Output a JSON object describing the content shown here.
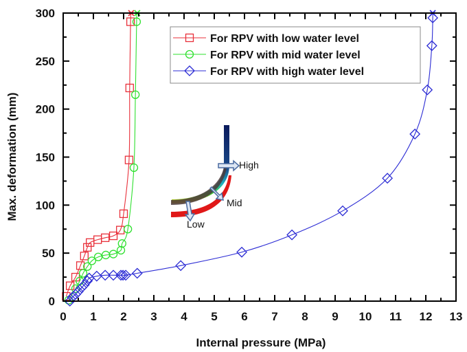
{
  "chart_data": {
    "type": "line",
    "title": "",
    "xlabel": "Internal pressure (MPa)",
    "ylabel": "Max. deformation (mm)",
    "xlim": [
      0,
      13
    ],
    "ylim": [
      0,
      300
    ],
    "x_ticks": [
      "0",
      "1",
      "2",
      "3",
      "4",
      "5",
      "6",
      "7",
      "8",
      "9",
      "10",
      "11",
      "12",
      "13"
    ],
    "y_ticks": [
      "0",
      "50",
      "100",
      "150",
      "200",
      "250",
      "300"
    ],
    "grid": false,
    "legend_position": "top-right",
    "series": [
      {
        "name": "For RPV with low water level",
        "color": "#e8303a",
        "marker": "square",
        "end_marker": "x",
        "x": [
          0.1,
          0.23,
          0.41,
          0.57,
          0.7,
          0.8,
          0.89,
          1.14,
          1.39,
          1.66,
          1.89,
          2.0,
          2.18,
          2.2,
          2.23,
          2.25
        ],
        "y": [
          5,
          16,
          25,
          37,
          47,
          56,
          61,
          64,
          66,
          68,
          74,
          91,
          147,
          222,
          291,
          300
        ]
      },
      {
        "name": "For RPV with mid water level",
        "color": "#2ee02e",
        "marker": "circle",
        "end_marker": "x",
        "x": [
          0.18,
          0.41,
          0.55,
          0.66,
          0.8,
          0.95,
          1.16,
          1.41,
          1.66,
          1.91,
          1.95,
          2.14,
          2.34,
          2.39,
          2.43,
          2.45
        ],
        "y": [
          1,
          13,
          21,
          29,
          36,
          42,
          46,
          48,
          49,
          53,
          60,
          75,
          139,
          215,
          291,
          300
        ]
      },
      {
        "name": "For RPV with high water level",
        "color": "#2b2bd4",
        "marker": "diamond",
        "end_marker": "x",
        "x": [
          0.22,
          0.3,
          0.41,
          0.5,
          0.61,
          0.7,
          0.8,
          0.86,
          1.11,
          1.39,
          1.66,
          1.91,
          1.98,
          2.07,
          2.45,
          3.89,
          5.91,
          7.57,
          9.25,
          10.73,
          11.64,
          12.05,
          12.2,
          12.23,
          12.23
        ],
        "y": [
          0,
          4,
          7,
          10,
          14,
          17,
          21,
          24,
          26,
          27,
          27,
          27,
          27,
          27,
          29,
          37,
          51,
          69,
          94,
          128,
          174,
          220,
          266,
          295,
          300
        ]
      }
    ],
    "annotations": {
      "inset_labels": [
        "High",
        "Mid",
        "Low"
      ]
    }
  }
}
